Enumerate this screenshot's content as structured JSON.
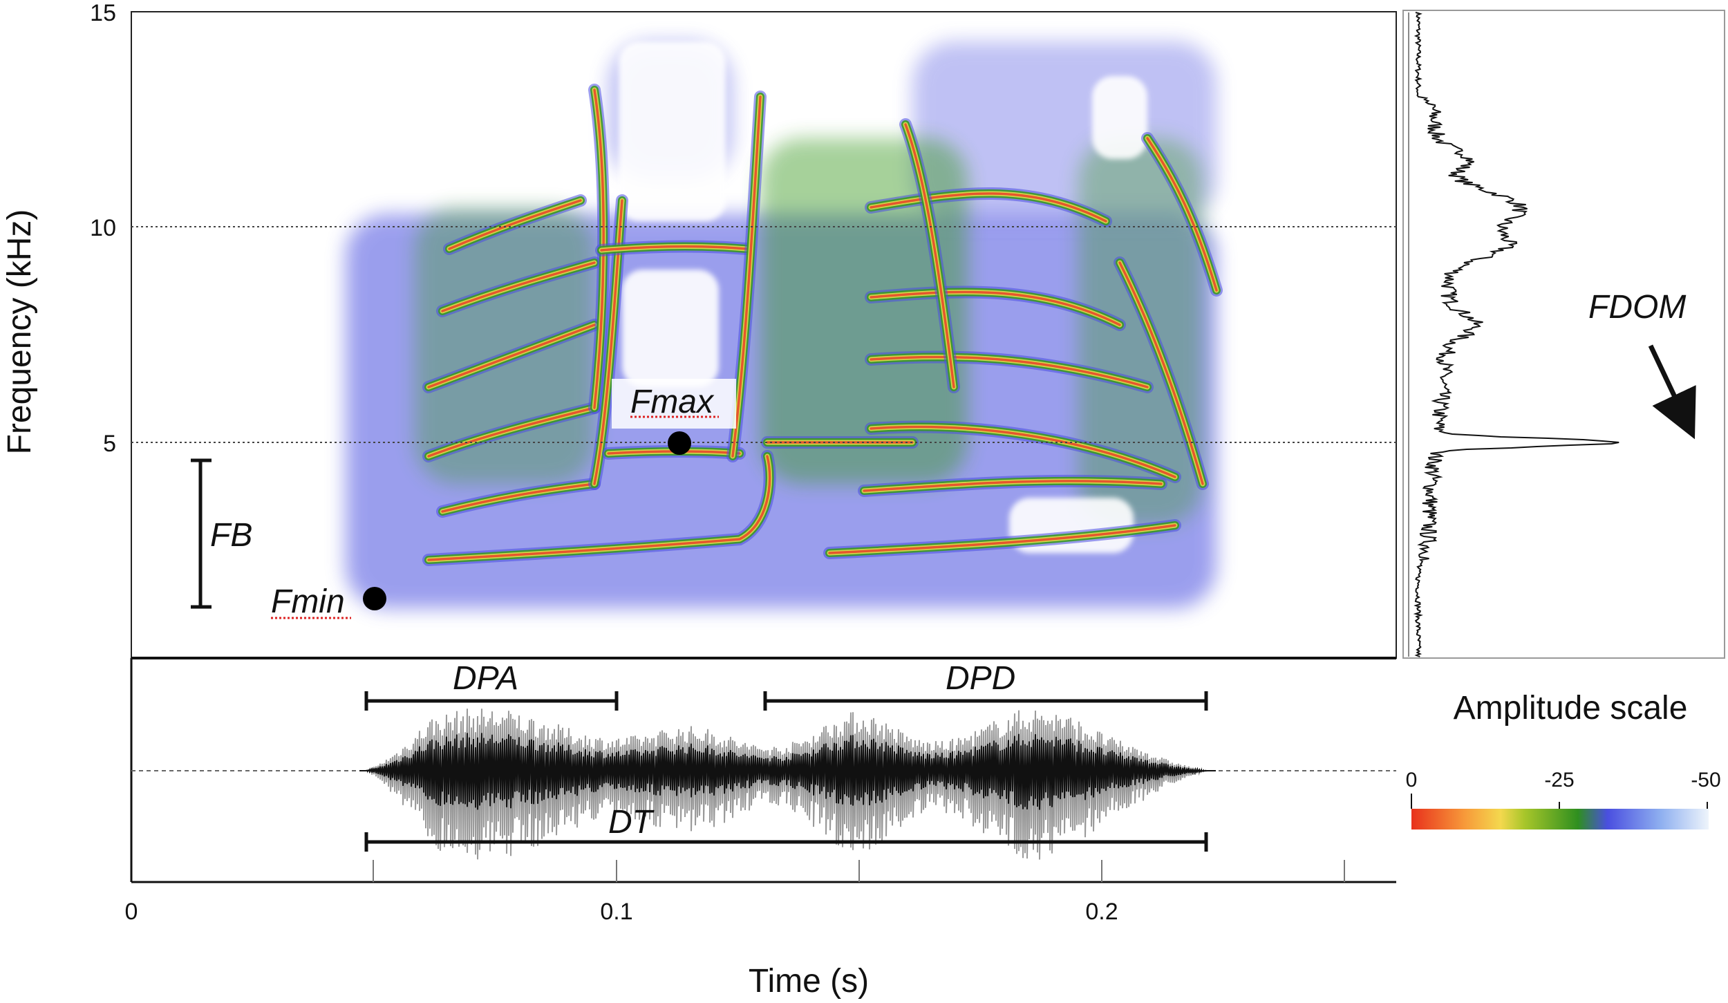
{
  "axes": {
    "y_title": "Frequency (kHz)",
    "x_title": "Time (s)",
    "y_ticks": [
      "15",
      "10",
      "5"
    ],
    "x_ticks": [
      "0",
      "0.1",
      "0.2"
    ],
    "y_range_khz": [
      0,
      15
    ],
    "x_range_s": [
      0,
      0.26
    ]
  },
  "annotations": {
    "fmax": "Fmax",
    "fmin": "Fmin",
    "fb": "FB",
    "fdom": "FDOM",
    "dpa": "DPA",
    "dpd": "DPD",
    "dt": "DT"
  },
  "measures": {
    "fmax_khz": 5.0,
    "fmax_time_s": 0.113,
    "fmin_khz": 1.5,
    "fmin_time_s": 0.05,
    "fb_khz": [
      1.2,
      4.6
    ],
    "dpa_s": [
      0.048,
      0.1
    ],
    "dpd_s": [
      0.13,
      0.222
    ],
    "dt_s": [
      0.048,
      0.222
    ]
  },
  "amplitude_scale": {
    "title": "Amplitude scale",
    "labels": [
      "0",
      "-25",
      "-50"
    ],
    "colors": [
      "#e8311c",
      "#f79a3a",
      "#f4d84e",
      "#a8c62a",
      "#2f8f1f",
      "#4a4fe0",
      "#8fb0f0",
      "#eef4fb"
    ]
  },
  "colors": {
    "grid": "#444444",
    "waveform": "#111111",
    "spectro_blue": "#4a4fe0",
    "spectro_green": "#3b9a22",
    "spectro_yellow": "#d9d84a",
    "spectro_red": "#e8482a"
  }
}
